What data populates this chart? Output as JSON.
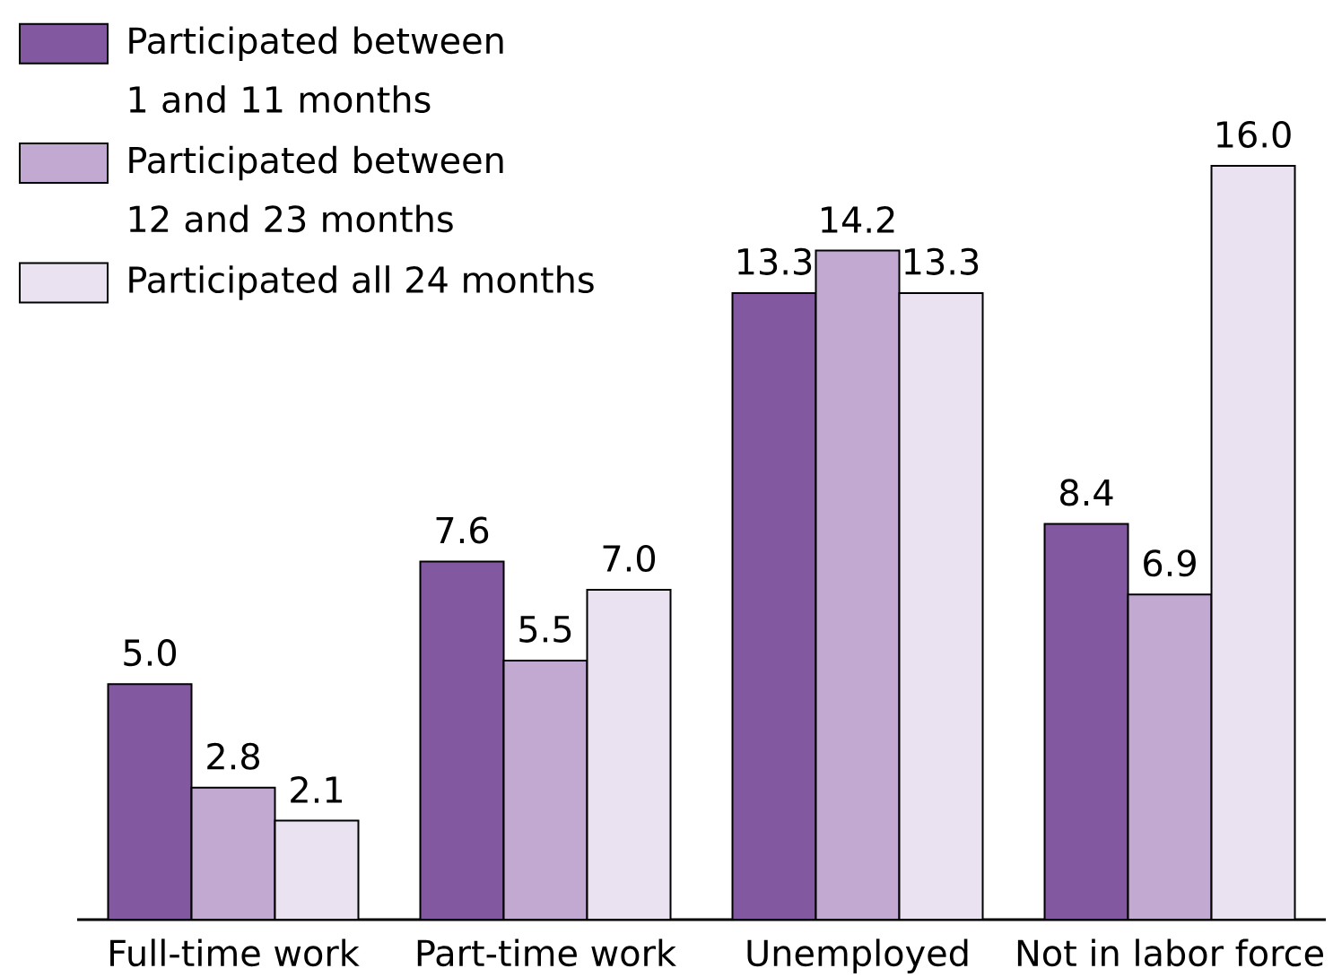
{
  "chart_data": {
    "type": "bar",
    "categories": [
      "Full-time work",
      "Part-time work",
      "Unemployed",
      "Not in labor force"
    ],
    "series": [
      {
        "name": "Participated between 1 and 11 months",
        "color": "#8258a0",
        "values": [
          5.0,
          7.6,
          13.3,
          8.4
        ],
        "value_labels": [
          "5.0",
          "7.6",
          "13.3",
          "8.4"
        ]
      },
      {
        "name": "Participated between 12 and 23 months",
        "color": "#c1a9d2",
        "values": [
          2.8,
          5.5,
          14.2,
          6.9
        ],
        "value_labels": [
          "2.8",
          "5.5",
          "14.2",
          "6.9"
        ]
      },
      {
        "name": "Participated all 24 months",
        "color": "#eae2f0",
        "values": [
          2.1,
          7.0,
          13.3,
          16.0
        ],
        "value_labels": [
          "2.1",
          "7.0",
          "13.3",
          "16.0"
        ]
      }
    ],
    "legend": "top left"
  }
}
